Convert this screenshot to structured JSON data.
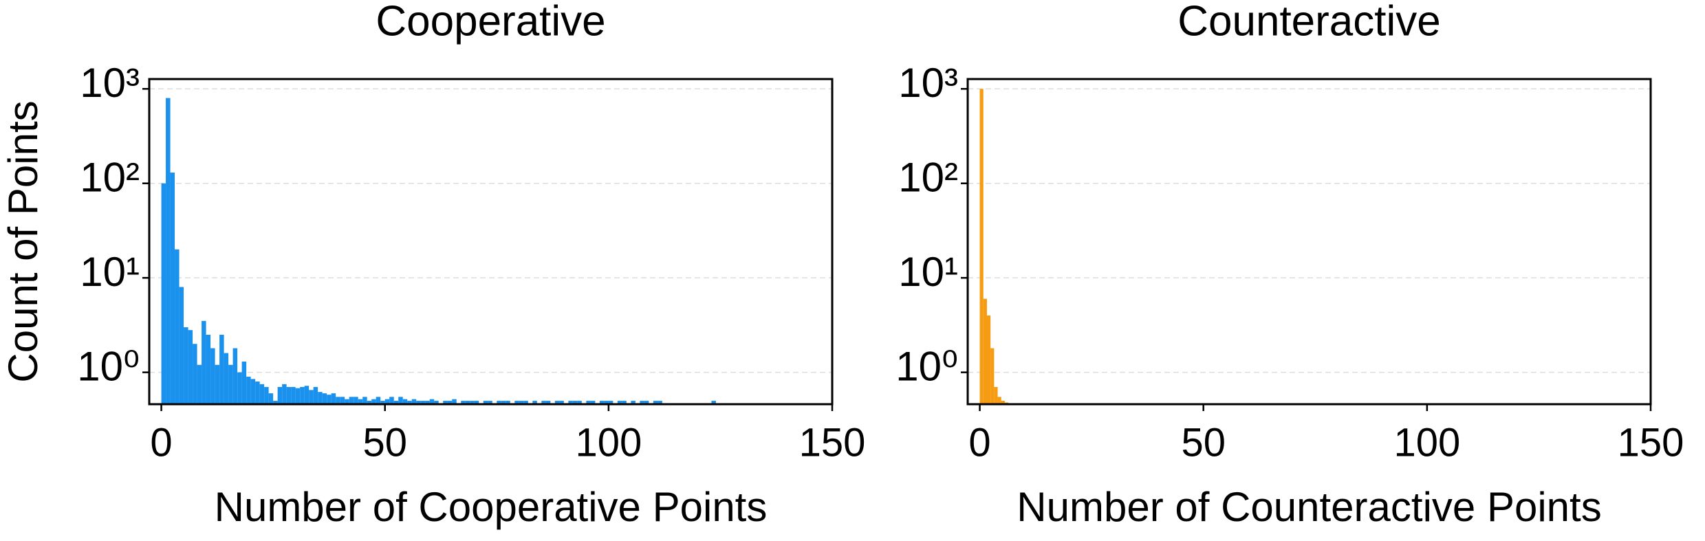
{
  "chart_data": [
    {
      "type": "histogram",
      "title": "Cooperative",
      "xlabel": "Number of Cooperative Points",
      "ylabel": "Count of Points",
      "color": "#1b91ee",
      "log_y": true,
      "grid": true,
      "xlim": [
        -2.7,
        150
      ],
      "xticks": [
        0,
        50,
        100,
        150
      ],
      "ylim": [
        0.46,
        1270
      ],
      "yticks": [
        {
          "value": 1,
          "label": "10⁰"
        },
        {
          "value": 10,
          "label": "10¹"
        },
        {
          "value": 100,
          "label": "10²"
        },
        {
          "value": 1000,
          "label": "10³"
        }
      ],
      "bins": [
        0,
        1,
        2,
        3,
        4,
        5,
        6,
        7,
        8,
        9,
        10,
        11,
        12,
        13,
        14,
        15,
        16,
        17,
        18,
        19,
        20,
        21,
        22,
        23,
        24,
        25,
        26,
        27,
        28,
        29,
        30,
        31,
        32,
        33,
        34,
        35,
        36,
        37,
        38,
        39,
        40,
        41,
        42,
        43,
        44,
        45,
        46,
        47,
        48,
        49,
        50,
        51,
        52,
        53,
        54,
        55,
        56,
        57,
        58,
        59,
        60,
        61,
        62,
        63,
        64,
        65,
        66,
        67,
        68,
        69,
        70,
        71,
        72,
        73,
        74,
        75,
        76,
        77,
        78,
        79,
        80,
        81,
        82,
        83,
        84,
        85,
        86,
        87,
        88,
        89,
        90,
        91,
        92,
        93,
        94,
        95,
        96,
        97,
        98,
        99,
        100,
        101,
        102,
        103,
        104,
        105,
        106,
        107,
        108,
        109,
        110,
        111,
        112,
        113,
        114,
        115,
        116,
        117,
        118,
        119,
        120,
        121,
        122,
        123,
        124,
        125
      ],
      "values": [
        100,
        800,
        130,
        20,
        8,
        3,
        2.8,
        2,
        1.2,
        3.5,
        2.5,
        1.8,
        1.2,
        2.5,
        1.6,
        1.2,
        1.8,
        1,
        1.3,
        0.9,
        0.85,
        0.8,
        0.75,
        0.7,
        0.6,
        0.5,
        0.7,
        0.75,
        0.7,
        0.7,
        0.68,
        0.7,
        0.72,
        0.65,
        0.7,
        0.62,
        0.6,
        0.58,
        0.6,
        0.55,
        0.55,
        0.52,
        0.55,
        0.55,
        0.52,
        0.55,
        0.5,
        0.52,
        0.55,
        0.5,
        0.52,
        0.55,
        0.5,
        0.55,
        0.52,
        0.5,
        0.52,
        0.5,
        0.5,
        0.5,
        0.52,
        0.5,
        0,
        0.5,
        0.5,
        0.52,
        0,
        0.5,
        0.5,
        0.5,
        0.5,
        0,
        0.5,
        0.5,
        0,
        0.5,
        0.5,
        0.5,
        0,
        0.5,
        0.5,
        0.5,
        0,
        0.5,
        0,
        0.5,
        0.5,
        0,
        0.5,
        0.5,
        0,
        0.5,
        0.5,
        0.5,
        0,
        0.5,
        0.5,
        0,
        0.5,
        0.5,
        0.5,
        0,
        0.5,
        0.5,
        0,
        0.5,
        0,
        0.5,
        0.5,
        0,
        0.5,
        0.5,
        0,
        0,
        0,
        0,
        0,
        0,
        0,
        0,
        0,
        0,
        0,
        0.5,
        0
      ]
    },
    {
      "type": "histogram",
      "title": "Counteractive",
      "xlabel": "Number of Counteractive Points",
      "color": "#f59c12",
      "log_y": true,
      "grid": true,
      "xlim": [
        -2.7,
        150
      ],
      "xticks": [
        0,
        50,
        100,
        150
      ],
      "ylim": [
        0.46,
        1270
      ],
      "yticks": [
        {
          "value": 1,
          "label": "10⁰"
        },
        {
          "value": 10,
          "label": "10¹"
        },
        {
          "value": 100,
          "label": "10²"
        },
        {
          "value": 1000,
          "label": "10³"
        }
      ],
      "bins": [
        0,
        0.8,
        1.6,
        2.4,
        3.2,
        4.0,
        4.8,
        5.6,
        6.4
      ],
      "values": [
        1000,
        6,
        4,
        1.8,
        0.7,
        0.55,
        0.5,
        0.48
      ]
    }
  ]
}
